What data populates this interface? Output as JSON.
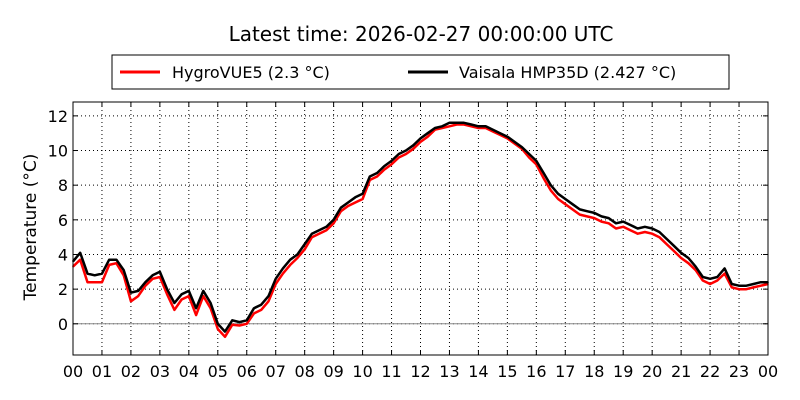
{
  "chart_data": {
    "type": "line",
    "title": "Latest time: 2026-02-27 00:00:00 UTC",
    "xlabel": "",
    "ylabel": "Temperature (°C)",
    "xlim": [
      0,
      24
    ],
    "ylim": [
      -1.8,
      12.8
    ],
    "x_ticks": [
      0,
      1,
      2,
      3,
      4,
      5,
      6,
      7,
      8,
      9,
      10,
      11,
      12,
      13,
      14,
      15,
      16,
      17,
      18,
      19,
      20,
      21,
      22,
      23,
      24
    ],
    "x_tick_labels": [
      "00",
      "01",
      "02",
      "03",
      "04",
      "05",
      "06",
      "07",
      "08",
      "09",
      "10",
      "11",
      "12",
      "13",
      "14",
      "15",
      "16",
      "17",
      "18",
      "19",
      "20",
      "21",
      "22",
      "23",
      "00"
    ],
    "y_ticks": [
      0,
      2,
      4,
      6,
      8,
      10,
      12
    ],
    "y_tick_labels": [
      "0",
      "2",
      "4",
      "6",
      "8",
      "10",
      "12"
    ],
    "grid": true,
    "zero_line": true,
    "legend_position": "top",
    "series": [
      {
        "name": "HygroVUE5 (2.3 °C)",
        "color": "#ff0000",
        "x": [
          0,
          0.25,
          0.5,
          0.75,
          1,
          1.25,
          1.5,
          1.75,
          2,
          2.25,
          2.5,
          2.75,
          3,
          3.25,
          3.5,
          3.75,
          4,
          4.25,
          4.5,
          4.75,
          5,
          5.25,
          5.5,
          5.75,
          6,
          6.25,
          6.5,
          6.75,
          7,
          7.25,
          7.5,
          7.75,
          8,
          8.25,
          8.5,
          8.75,
          9,
          9.25,
          9.5,
          9.75,
          10,
          10.25,
          10.5,
          10.75,
          11,
          11.25,
          11.5,
          11.75,
          12,
          12.25,
          12.5,
          12.75,
          13,
          13.25,
          13.5,
          13.75,
          14,
          14.25,
          14.5,
          14.75,
          15,
          15.25,
          15.5,
          15.75,
          16,
          16.25,
          16.5,
          16.75,
          17,
          17.25,
          17.5,
          17.75,
          18,
          18.25,
          18.5,
          18.75,
          19,
          19.25,
          19.5,
          19.75,
          20,
          20.25,
          20.5,
          20.75,
          21,
          21.25,
          21.5,
          21.75,
          22,
          22.25,
          22.5,
          22.75,
          23,
          23.25,
          23.5,
          23.75,
          24
        ],
        "values": [
          3.3,
          3.7,
          2.4,
          2.4,
          2.4,
          3.4,
          3.5,
          2.8,
          1.3,
          1.6,
          2.2,
          2.6,
          2.7,
          1.7,
          0.8,
          1.4,
          1.6,
          0.5,
          1.6,
          0.9,
          -0.3,
          -0.75,
          -0.05,
          -0.1,
          0.0,
          0.6,
          0.8,
          1.3,
          2.3,
          2.9,
          3.4,
          3.8,
          4.3,
          5.0,
          5.2,
          5.4,
          5.8,
          6.5,
          6.8,
          7.0,
          7.2,
          8.3,
          8.5,
          8.9,
          9.2,
          9.6,
          9.8,
          10.1,
          10.5,
          10.8,
          11.2,
          11.3,
          11.4,
          11.5,
          11.5,
          11.4,
          11.3,
          11.3,
          11.1,
          10.9,
          10.7,
          10.4,
          10.1,
          9.6,
          9.2,
          8.4,
          7.7,
          7.2,
          6.9,
          6.6,
          6.3,
          6.2,
          6.1,
          5.9,
          5.8,
          5.5,
          5.6,
          5.4,
          5.2,
          5.3,
          5.2,
          5.0,
          4.6,
          4.2,
          3.8,
          3.5,
          3.1,
          2.5,
          2.3,
          2.5,
          2.9,
          2.1,
          2.0,
          2.0,
          2.1,
          2.2,
          2.3
        ]
      },
      {
        "name": "Vaisala HMP35D (2.427 °C)",
        "color": "#000000",
        "x": [
          0,
          0.25,
          0.5,
          0.75,
          1,
          1.25,
          1.5,
          1.75,
          2,
          2.25,
          2.5,
          2.75,
          3,
          3.25,
          3.5,
          3.75,
          4,
          4.25,
          4.5,
          4.75,
          5,
          5.25,
          5.5,
          5.75,
          6,
          6.25,
          6.5,
          6.75,
          7,
          7.25,
          7.5,
          7.75,
          8,
          8.25,
          8.5,
          8.75,
          9,
          9.25,
          9.5,
          9.75,
          10,
          10.25,
          10.5,
          10.75,
          11,
          11.25,
          11.5,
          11.75,
          12,
          12.25,
          12.5,
          12.75,
          13,
          13.25,
          13.5,
          13.75,
          14,
          14.25,
          14.5,
          14.75,
          15,
          15.25,
          15.5,
          15.75,
          16,
          16.25,
          16.5,
          16.75,
          17,
          17.25,
          17.5,
          17.75,
          18,
          18.25,
          18.5,
          18.75,
          19,
          19.25,
          19.5,
          19.75,
          20,
          20.25,
          20.5,
          20.75,
          21,
          21.25,
          21.5,
          21.75,
          22,
          22.25,
          22.5,
          22.75,
          23,
          23.25,
          23.5,
          23.75,
          24
        ],
        "values": [
          3.6,
          4.1,
          2.9,
          2.8,
          2.9,
          3.7,
          3.7,
          3.1,
          1.8,
          1.9,
          2.4,
          2.8,
          3.0,
          2.0,
          1.2,
          1.7,
          1.9,
          0.9,
          1.9,
          1.2,
          0.0,
          -0.45,
          0.2,
          0.1,
          0.2,
          0.9,
          1.1,
          1.6,
          2.6,
          3.2,
          3.7,
          4.0,
          4.6,
          5.2,
          5.4,
          5.6,
          6.0,
          6.7,
          7.0,
          7.3,
          7.5,
          8.5,
          8.7,
          9.1,
          9.4,
          9.8,
          10.0,
          10.3,
          10.7,
          11.0,
          11.3,
          11.4,
          11.6,
          11.6,
          11.6,
          11.5,
          11.4,
          11.4,
          11.2,
          11.0,
          10.8,
          10.5,
          10.2,
          9.8,
          9.4,
          8.7,
          8.0,
          7.5,
          7.2,
          6.9,
          6.6,
          6.5,
          6.4,
          6.2,
          6.1,
          5.8,
          5.9,
          5.7,
          5.5,
          5.6,
          5.5,
          5.3,
          4.9,
          4.5,
          4.1,
          3.8,
          3.3,
          2.7,
          2.6,
          2.7,
          3.2,
          2.3,
          2.2,
          2.2,
          2.3,
          2.4,
          2.4
        ]
      }
    ]
  }
}
